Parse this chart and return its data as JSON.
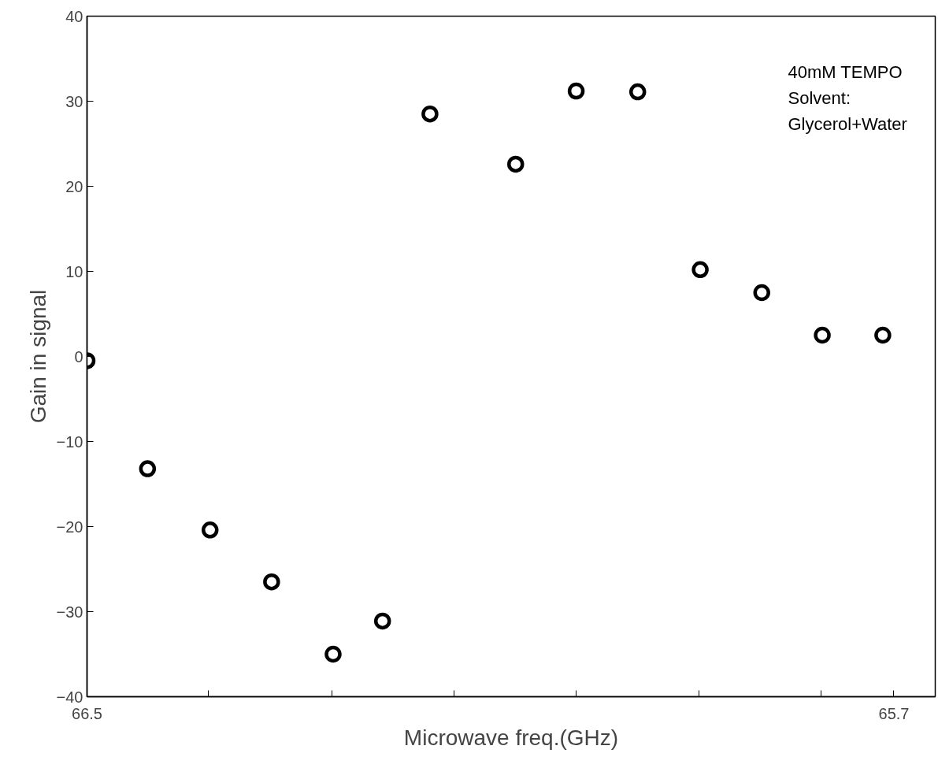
{
  "chart_data": {
    "type": "scatter",
    "xlabel": "Microwave freq.(GHz)",
    "ylabel": "Gain in signal",
    "x": [
      66.5,
      66.44,
      66.378,
      66.317,
      66.256,
      66.207,
      66.16,
      66.075,
      66.015,
      65.954,
      65.892,
      65.831,
      65.771,
      65.711
    ],
    "values": [
      -0.5,
      -13.2,
      -20.4,
      -26.5,
      -35.0,
      -31.1,
      28.5,
      22.6,
      31.2,
      31.1,
      10.2,
      7.5,
      2.5,
      2.5
    ],
    "color": "#000000",
    "marker": "circle",
    "xlim": [
      66.5,
      65.659
    ],
    "ylim": [
      -40,
      40
    ],
    "xticks": [
      66.5,
      {
        "value": 66.38,
        "label": null
      },
      {
        "value": 66.257,
        "label": null
      },
      {
        "value": 66.136,
        "label": null
      },
      {
        "value": 66.015,
        "label": null
      },
      {
        "value": 65.893,
        "label": null
      },
      {
        "value": 65.772,
        "label": null
      },
      65.7
    ],
    "yticks": [
      -40,
      -30,
      -20,
      -10,
      0,
      10,
      20,
      30,
      40
    ],
    "annotations": [
      "40mM TEMPO\nSolvent:\nGlycerol+Water"
    ]
  }
}
